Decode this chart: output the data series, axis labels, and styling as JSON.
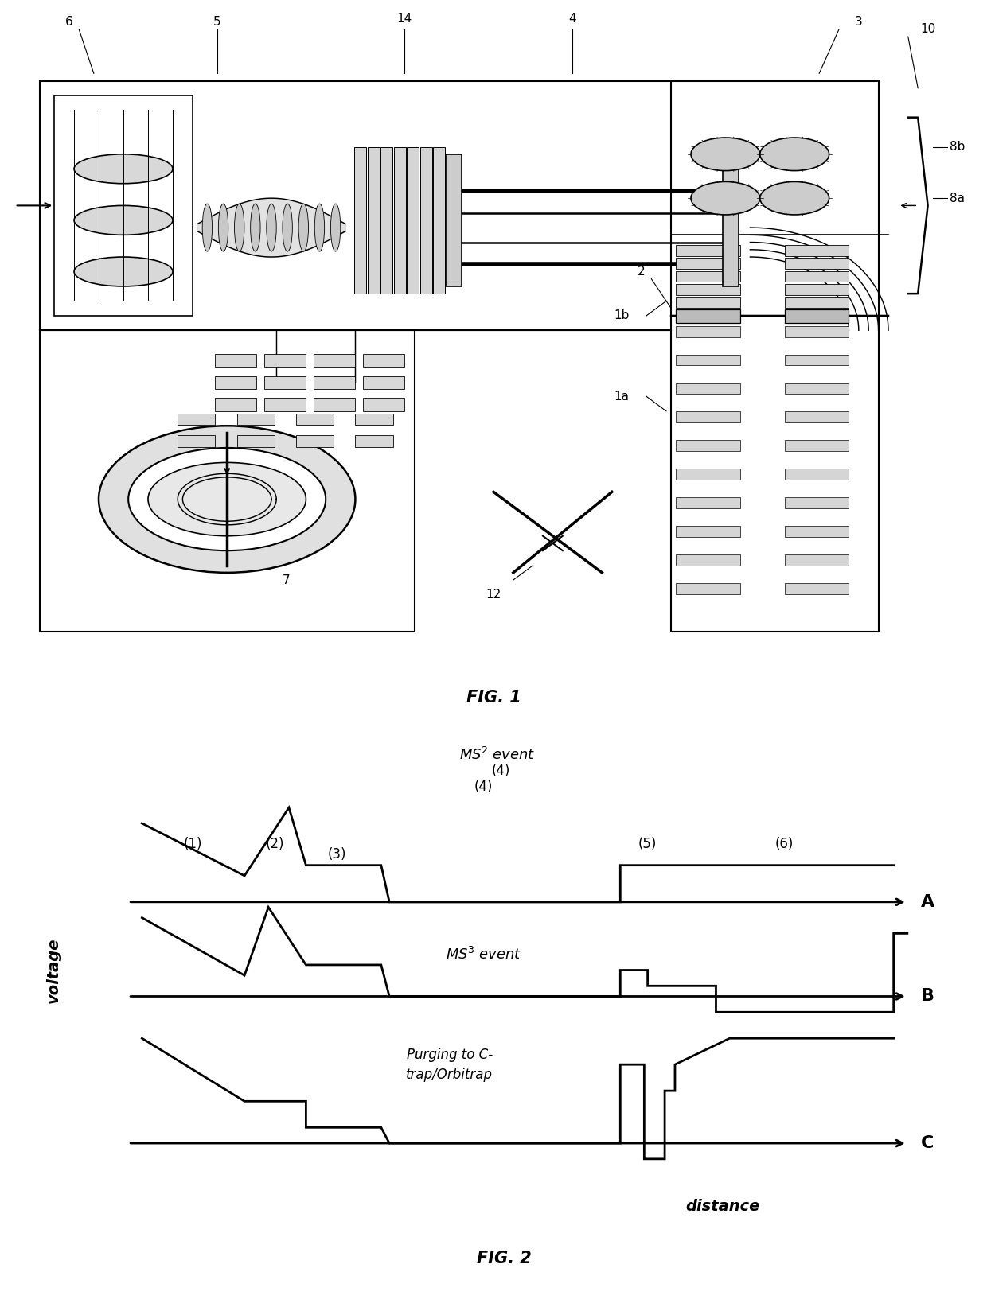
{
  "background_color": "#ffffff",
  "fig1_title": "FIG. 1",
  "fig2_title": "FIG. 2",
  "fig2": {
    "ylabel": "voltage",
    "xlabel": "distance",
    "labels_A": "A",
    "labels_B": "B",
    "labels_C": "C",
    "phase_labels": [
      "(1)",
      "(2)",
      "(3)",
      "(4)",
      "(5)",
      "(6)"
    ],
    "ms2_text": "MS$^2$ event",
    "ms3_text": "MS$^3$ event",
    "purge_text": "Purging to C-\ntrap/Orbitrap"
  }
}
